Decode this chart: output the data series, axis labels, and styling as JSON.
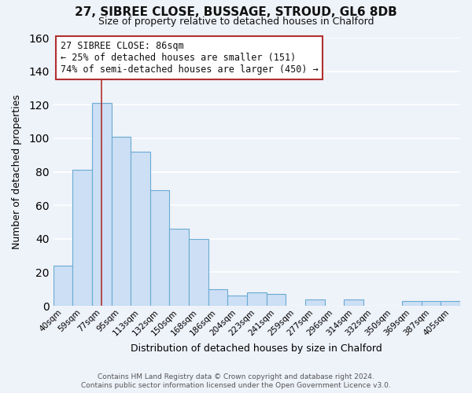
{
  "title": "27, SIBREE CLOSE, BUSSAGE, STROUD, GL6 8DB",
  "subtitle": "Size of property relative to detached houses in Chalford",
  "xlabel": "Distribution of detached houses by size in Chalford",
  "ylabel": "Number of detached properties",
  "bar_labels": [
    "40sqm",
    "59sqm",
    "77sqm",
    "95sqm",
    "113sqm",
    "132sqm",
    "150sqm",
    "168sqm",
    "186sqm",
    "204sqm",
    "223sqm",
    "241sqm",
    "259sqm",
    "277sqm",
    "296sqm",
    "314sqm",
    "332sqm",
    "350sqm",
    "369sqm",
    "387sqm",
    "405sqm"
  ],
  "bar_heights": [
    24,
    81,
    121,
    101,
    92,
    69,
    46,
    40,
    10,
    6,
    8,
    7,
    0,
    4,
    0,
    4,
    0,
    0,
    3,
    3,
    3
  ],
  "bar_color": "#ccdff4",
  "bar_edge_color": "#6aaad4",
  "vline_x_index": 2,
  "vline_color": "#b03030",
  "ylim": [
    0,
    160
  ],
  "annotation_line1": "27 SIBREE CLOSE: 86sqm",
  "annotation_line2": "← 25% of detached houses are smaller (151)",
  "annotation_line3": "74% of semi-detached houses are larger (450) →",
  "footnote1": "Contains HM Land Registry data © Crown copyright and database right 2024.",
  "footnote2": "Contains public sector information licensed under the Open Government Licence v3.0.",
  "background_color": "#eef2f9",
  "grid_color": "#ffffff",
  "title_fontsize": 11,
  "subtitle_fontsize": 9,
  "ylabel_fontsize": 9,
  "xlabel_fontsize": 9,
  "tick_fontsize": 7.5,
  "annot_fontsize": 8.5,
  "footnote_fontsize": 6.5
}
